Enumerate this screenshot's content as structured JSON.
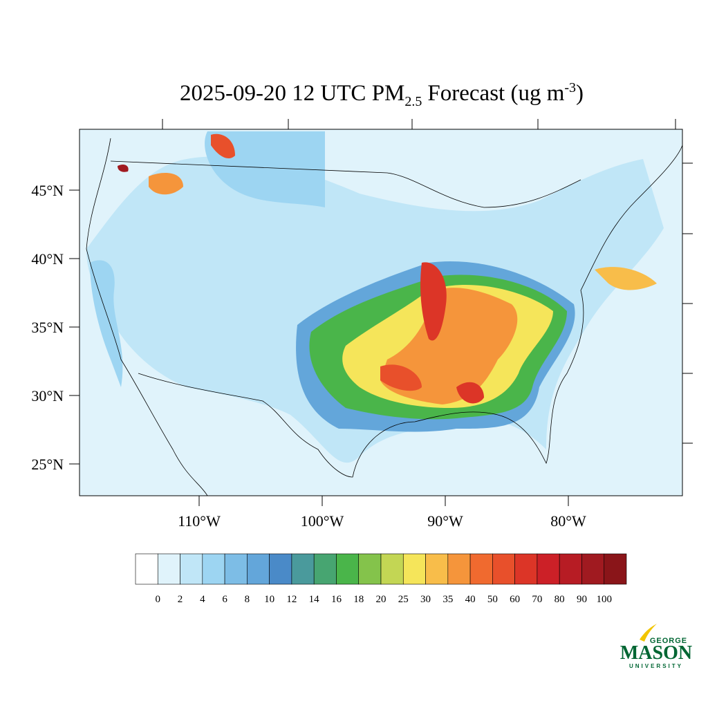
{
  "title": {
    "main": "2025-09-20 12 UTC PM",
    "subscript": "2.5",
    "rest": "Forecast (ug m",
    "superscript": "-3",
    "end": ")"
  },
  "map": {
    "lat_ticks": [
      {
        "value": 45,
        "label": "45°N"
      },
      {
        "value": 40,
        "label": "40°N"
      },
      {
        "value": 35,
        "label": "35°N"
      },
      {
        "value": 30,
        "label": "30°N"
      },
      {
        "value": 25,
        "label": "25°N"
      }
    ],
    "lon_ticks": [
      {
        "value": -110,
        "label": "110°W"
      },
      {
        "value": -100,
        "label": "100°W"
      },
      {
        "value": -90,
        "label": "90°W"
      },
      {
        "value": -80,
        "label": "80°W"
      }
    ]
  },
  "colorbar": {
    "levels": [
      0,
      2,
      4,
      6,
      8,
      10,
      12,
      14,
      16,
      18,
      20,
      25,
      30,
      35,
      40,
      50,
      60,
      70,
      80,
      90,
      100
    ],
    "colors": [
      "#ffffff",
      "#e0f3fb",
      "#c0e6f7",
      "#9dd5f2",
      "#7dbde6",
      "#63a6da",
      "#4a8ac8",
      "#4a9a9c",
      "#47a571",
      "#4ab54a",
      "#84c34b",
      "#c3d654",
      "#f5e55a",
      "#f8bd4a",
      "#f5953b",
      "#f06a2f",
      "#e8502b",
      "#dc3527",
      "#cc2027",
      "#b71c24",
      "#a01a20",
      "#8a1519"
    ]
  },
  "logo": {
    "top": "GEORGE",
    "name": "MASON",
    "bottom": "UNIVERSITY"
  }
}
